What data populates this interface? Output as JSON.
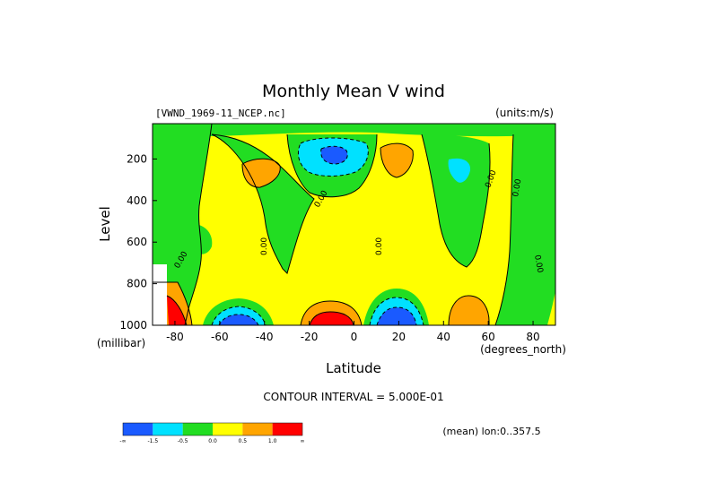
{
  "chart_data": {
    "type": "heatmap",
    "title": "Monthly Mean V wind",
    "dataset_label": "[VWND_1969-11_NCEP.nc]",
    "units_label": "(units:m/s)",
    "xlabel": "Latitude",
    "x_units": "(degrees_north)",
    "ylabel": "Level",
    "y_units": "(millibar)",
    "xlim": [
      -90,
      90
    ],
    "ylim": [
      1000,
      30
    ],
    "y_reversed": true,
    "x_ticks": [
      -80,
      -60,
      -40,
      -20,
      0,
      20,
      40,
      60,
      80
    ],
    "y_ticks": [
      200,
      400,
      600,
      800,
      1000
    ],
    "contour_interval_text": "CONTOUR INTERVAL = 5.000E-01",
    "mean_text": "(mean) lon:0..357.5",
    "contour_label": "0.00",
    "colorbar": {
      "bins": [
        {
          "lo": null,
          "hi": -1.5,
          "color": "#1a5aff"
        },
        {
          "lo": -1.5,
          "hi": -0.5,
          "color": "#00e1ff"
        },
        {
          "lo": -0.5,
          "hi": 0.0,
          "color": "#22dd22"
        },
        {
          "lo": 0.0,
          "hi": 0.5,
          "color": "#ffff00"
        },
        {
          "lo": 0.5,
          "hi": 1.0,
          "color": "#ffa500"
        },
        {
          "lo": 1.0,
          "hi": null,
          "color": "#ff0000"
        }
      ],
      "tick_labels": [
        "-∞",
        "-1.5",
        "-0.5",
        "0.0",
        "0.5",
        "1.0",
        "∞"
      ]
    },
    "field": {
      "background_color": "#ffff00",
      "regions": [
        {
          "name": "westerly-green-left",
          "sign": "negative",
          "color": "#22dd22",
          "lat_range": [
            -90,
            -60
          ],
          "level_range": [
            30,
            1000
          ]
        },
        {
          "name": "green-upper-band",
          "sign": "negative",
          "color": "#22dd22",
          "lat_range": [
            -90,
            90
          ],
          "level_range": [
            30,
            60
          ]
        },
        {
          "name": "green-mid-south",
          "sign": "negative",
          "color": "#22dd22",
          "lat_range": [
            -50,
            -20
          ],
          "level_range": [
            30,
            300
          ]
        },
        {
          "name": "green-equator",
          "sign": "negative",
          "color": "#22dd22",
          "lat_range": [
            -25,
            10
          ],
          "level_range": [
            30,
            220
          ]
        },
        {
          "name": "green-north",
          "sign": "negative",
          "color": "#22dd22",
          "lat_range": [
            30,
            60
          ],
          "level_range": [
            60,
            650
          ]
        },
        {
          "name": "green-polar-north",
          "sign": "negative",
          "color": "#22dd22",
          "lat_range": [
            65,
            90
          ],
          "level_range": [
            200,
            1000
          ]
        },
        {
          "name": "blue-max-aloft",
          "sign": "negative",
          "color": "#1a5aff",
          "lat_range": [
            -15,
            -5
          ],
          "level_range": [
            150,
            200
          ],
          "min_value": -2.0
        },
        {
          "name": "cyan-aloft",
          "sign": "negative",
          "color": "#00e1ff",
          "lat_range": [
            -25,
            5
          ],
          "level_range": [
            110,
            250
          ]
        },
        {
          "name": "cyan-north",
          "sign": "negative",
          "color": "#00e1ff",
          "lat_range": [
            40,
            48
          ],
          "level_range": [
            180,
            290
          ]
        },
        {
          "name": "blue-surface-south",
          "sign": "negative",
          "color": "#1a5aff",
          "lat_range": [
            -62,
            -45
          ],
          "level_range": [
            950,
            1000
          ]
        },
        {
          "name": "blue-surface-north",
          "sign": "negative",
          "color": "#1a5aff",
          "lat_range": [
            8,
            30
          ],
          "level_range": [
            940,
            1000
          ]
        },
        {
          "name": "orange-south",
          "sign": "positive",
          "color": "#ffa500",
          "lat_range": [
            -51,
            -42
          ],
          "level_range": [
            170,
            290
          ]
        },
        {
          "name": "orange-aloft-north",
          "sign": "positive",
          "color": "#ffa500",
          "lat_range": [
            10,
            25
          ],
          "level_range": [
            110,
            220
          ]
        },
        {
          "name": "orange-surface-equator",
          "sign": "positive",
          "color": "#ffa500",
          "lat_range": [
            -25,
            2
          ],
          "level_range": [
            900,
            1000
          ]
        },
        {
          "name": "red-surface-equator",
          "sign": "positive",
          "color": "#ff0000",
          "lat_range": [
            -20,
            -5
          ],
          "level_range": [
            960,
            1000
          ]
        },
        {
          "name": "orange-surface-north",
          "sign": "positive",
          "color": "#ffa500",
          "lat_range": [
            43,
            60
          ],
          "level_range": [
            900,
            1000
          ]
        },
        {
          "name": "red-surface-south-pole",
          "sign": "positive",
          "color": "#ff0000",
          "lat_range": [
            -88,
            -80
          ],
          "level_range": [
            860,
            1000
          ],
          "max_value": 2.0
        }
      ]
    }
  }
}
